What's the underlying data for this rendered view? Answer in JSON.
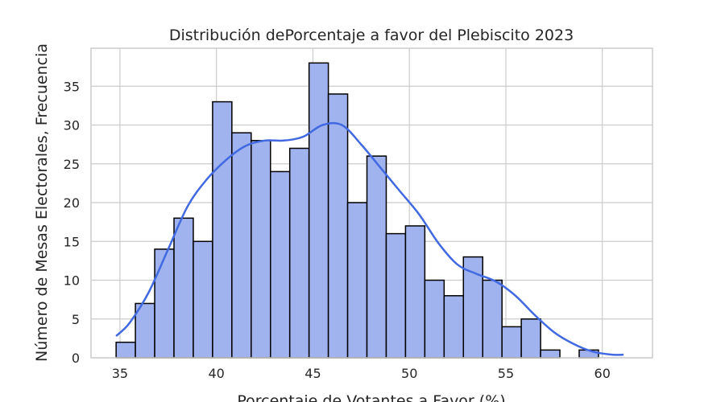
{
  "chart_data": {
    "type": "bar",
    "title": "Distribución dePorcentaje a favor del Plebiscito 2023",
    "xlabel": "Porcentaje de Votantes a Favor (%)",
    "ylabel": "Número de Mesas Electorales, Frecuencia",
    "xlim": [
      33.5,
      62.6
    ],
    "ylim": [
      0,
      39.9
    ],
    "x_ticks": [
      35,
      40,
      45,
      50,
      55,
      60
    ],
    "y_ticks": [
      0,
      5,
      10,
      15,
      20,
      25,
      30,
      35
    ],
    "grid": true,
    "bins": {
      "start": 34.8,
      "width": 1.0,
      "counts": [
        2,
        7,
        14,
        18,
        15,
        33,
        29,
        28,
        24,
        27,
        38,
        34,
        20,
        26,
        16,
        17,
        10,
        8,
        13,
        10,
        4,
        5,
        1,
        0,
        1
      ]
    },
    "kde_curve": {
      "x": [
        34.8,
        35.5,
        36.5,
        37.5,
        38.5,
        39.5,
        40.5,
        41.5,
        42.5,
        43.5,
        44.5,
        45.5,
        46.5,
        47.5,
        48.5,
        49.5,
        50.5,
        51.5,
        52.5,
        53.5,
        54.5,
        55.5,
        56.5,
        57.5,
        58.5,
        59.5,
        60.5,
        61.1
      ],
      "y": [
        2.8,
        4.5,
        8.5,
        14.0,
        19.5,
        23.0,
        25.5,
        27.3,
        28.0,
        28.0,
        28.5,
        30.0,
        30.0,
        27.5,
        24.5,
        21.5,
        18.5,
        14.8,
        12.0,
        10.8,
        9.8,
        8.0,
        5.5,
        3.3,
        1.8,
        0.8,
        0.4,
        0.4
      ]
    },
    "colors": {
      "bar_fill": "#a0b3ee",
      "bar_edge": "#000000",
      "kde_line": "#4169e1"
    }
  }
}
